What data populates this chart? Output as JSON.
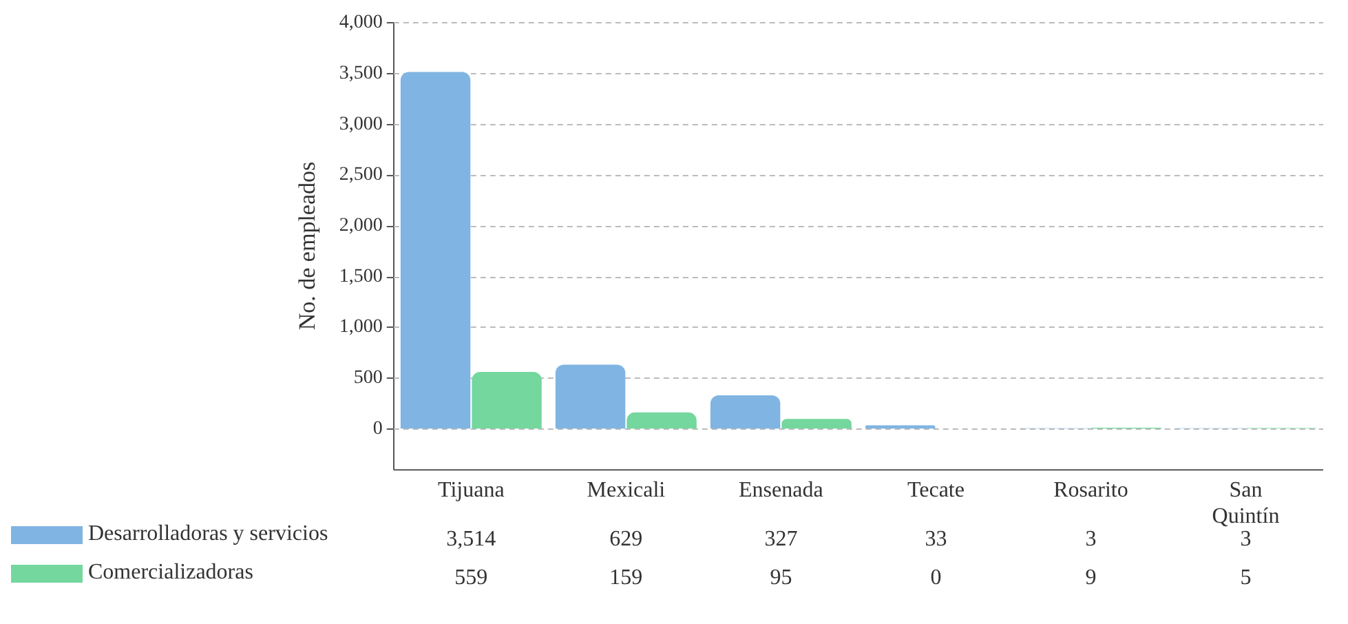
{
  "chart_data": {
    "type": "bar",
    "ylabel": "No. de empleados",
    "categories": [
      "Tijuana",
      "Mexicali",
      "Ensenada",
      "Tecate",
      "Rosarito",
      "San Quintín"
    ],
    "series": [
      {
        "name": "Desarrolladoras y servicios",
        "color": "#80b4e2",
        "values": [
          3514,
          629,
          327,
          33,
          3,
          3
        ],
        "value_labels": [
          "3,514",
          "629",
          "327",
          "33",
          "3",
          "3"
        ]
      },
      {
        "name": "Comercializadoras",
        "color": "#74d79e",
        "values": [
          559,
          159,
          95,
          0,
          9,
          5
        ],
        "value_labels": [
          "559",
          "159",
          "95",
          "0",
          "9",
          "5"
        ]
      }
    ],
    "ylim": [
      -400,
      4000
    ],
    "yticks": [
      0,
      {
        "value": 500,
        "label": "500"
      },
      {
        "value": 1000,
        "label": "1,000"
      },
      {
        "value": 1500,
        "label": "1,500"
      },
      {
        "value": 2000,
        "label": "2,000"
      },
      {
        "value": 2500,
        "label": "2,500"
      },
      {
        "value": 3000,
        "label": "3,000"
      },
      {
        "value": 3500,
        "label": "3,500"
      },
      {
        "value": 4000,
        "label": "4,000"
      }
    ],
    "grid": "y",
    "legend": "bottom left"
  }
}
